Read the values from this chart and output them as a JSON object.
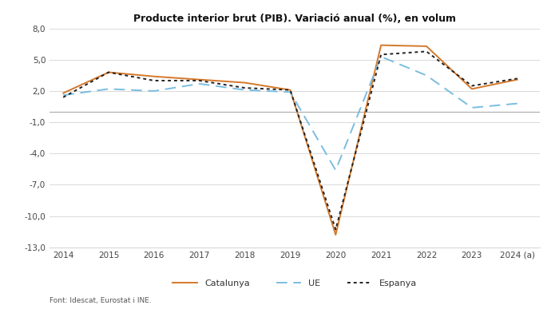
{
  "title": "Producte interior brut (PIB). Variació anual (%), en volum",
  "years": [
    2014,
    2015,
    2016,
    2017,
    2018,
    2019,
    2020,
    2021,
    2022,
    2023,
    2024
  ],
  "x_labels": [
    "2014",
    "2015",
    "2016",
    "2017",
    "2018",
    "2019",
    "2020",
    "2021",
    "2022",
    "2023",
    "2024 (a)"
  ],
  "catalunya": [
    1.8,
    3.8,
    3.4,
    3.1,
    2.8,
    2.1,
    -11.8,
    6.4,
    6.3,
    2.2,
    3.1
  ],
  "ue": [
    1.6,
    2.2,
    2.0,
    2.7,
    2.1,
    1.9,
    -5.6,
    5.3,
    3.5,
    0.4,
    0.8
  ],
  "espanya": [
    1.4,
    3.8,
    3.0,
    3.0,
    2.3,
    2.1,
    -11.3,
    5.5,
    5.8,
    2.5,
    3.2
  ],
  "catalunya_color": "#D4782A",
  "ue_color": "#7ABDE0",
  "espanya_color": "#222222",
  "ylim": [
    -13.0,
    8.0
  ],
  "yticks": [
    -13.0,
    -10.0,
    -7.0,
    -4.0,
    -1.0,
    2.0,
    5.0,
    8.0
  ],
  "ytick_labels": [
    "-13,0",
    "-10,0",
    "-7,0",
    "-4,0",
    "-1,0",
    "2,0",
    "5,0",
    "8,0"
  ],
  "footnote": "Font: Idescat, Eurostat i INE.",
  "background_color": "#ffffff",
  "grid_color": "#cccccc",
  "zero_line_color": "#aaaaaa",
  "title_fontsize": 9,
  "tick_fontsize": 7.5,
  "legend_fontsize": 8,
  "footnote_fontsize": 6.5
}
